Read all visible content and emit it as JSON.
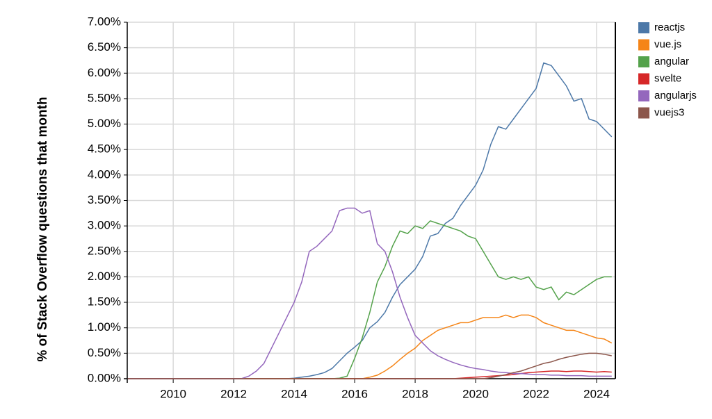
{
  "chart_data": {
    "type": "line",
    "ylabel": "% of Stack Overflow questions that month",
    "x": [
      2008.5,
      2008.75,
      2009,
      2009.25,
      2009.5,
      2009.75,
      2010,
      2010.25,
      2010.5,
      2010.75,
      2011,
      2011.25,
      2011.5,
      2011.75,
      2012,
      2012.25,
      2012.5,
      2012.75,
      2013,
      2013.25,
      2013.5,
      2013.75,
      2014,
      2014.25,
      2014.5,
      2014.75,
      2015,
      2015.25,
      2015.5,
      2015.75,
      2016,
      2016.25,
      2016.5,
      2016.75,
      2017,
      2017.25,
      2017.5,
      2017.75,
      2018,
      2018.25,
      2018.5,
      2018.75,
      2019,
      2019.25,
      2019.5,
      2019.75,
      2020,
      2020.25,
      2020.5,
      2020.75,
      2021,
      2021.25,
      2021.5,
      2021.75,
      2022,
      2022.25,
      2022.5,
      2022.75,
      2023,
      2023.25,
      2023.5,
      2023.75,
      2024,
      2024.25,
      2024.5
    ],
    "series": [
      {
        "name": "reactjs",
        "color": "#4c78a8",
        "values": [
          0,
          0,
          0,
          0,
          0,
          0,
          0,
          0,
          0,
          0,
          0,
          0,
          0,
          0,
          0,
          0,
          0,
          0,
          0,
          0,
          0,
          0,
          0.01,
          0.03,
          0.05,
          0.08,
          0.12,
          0.2,
          0.35,
          0.5,
          0.62,
          0.75,
          1.0,
          1.12,
          1.3,
          1.6,
          1.85,
          2.0,
          2.15,
          2.4,
          2.8,
          2.85,
          3.05,
          3.15,
          3.4,
          3.6,
          3.8,
          4.1,
          4.6,
          4.95,
          4.9,
          5.1,
          5.3,
          5.5,
          5.7,
          6.2,
          6.15,
          5.95,
          5.75,
          5.45,
          5.5,
          5.1,
          5.05,
          4.9,
          4.75
        ]
      },
      {
        "name": "vue.js",
        "color": "#f58518",
        "values": [
          0,
          0,
          0,
          0,
          0,
          0,
          0,
          0,
          0,
          0,
          0,
          0,
          0,
          0,
          0,
          0,
          0,
          0,
          0,
          0,
          0,
          0,
          0,
          0,
          0,
          0,
          0,
          0,
          0,
          0,
          0,
          0,
          0.03,
          0.07,
          0.15,
          0.25,
          0.38,
          0.5,
          0.6,
          0.75,
          0.85,
          0.95,
          1.0,
          1.05,
          1.1,
          1.1,
          1.15,
          1.2,
          1.2,
          1.2,
          1.25,
          1.2,
          1.25,
          1.25,
          1.2,
          1.1,
          1.05,
          1.0,
          0.95,
          0.95,
          0.9,
          0.85,
          0.8,
          0.78,
          0.7
        ]
      },
      {
        "name": "angular",
        "color": "#54a24b",
        "values": [
          0,
          0,
          0,
          0,
          0,
          0,
          0,
          0,
          0,
          0,
          0,
          0,
          0,
          0,
          0,
          0,
          0,
          0,
          0,
          0,
          0,
          0,
          0,
          0,
          0,
          0,
          0,
          0,
          0.01,
          0.05,
          0.4,
          0.8,
          1.3,
          1.9,
          2.2,
          2.6,
          2.9,
          2.85,
          3.0,
          2.95,
          3.1,
          3.05,
          3.0,
          2.95,
          2.9,
          2.8,
          2.75,
          2.5,
          2.25,
          2.0,
          1.95,
          2.0,
          1.95,
          2.0,
          1.8,
          1.75,
          1.8,
          1.55,
          1.7,
          1.65,
          1.75,
          1.85,
          1.95,
          2.0,
          2.0
        ]
      },
      {
        "name": "svelte",
        "color": "#d62728",
        "values": [
          0,
          0,
          0,
          0,
          0,
          0,
          0,
          0,
          0,
          0,
          0,
          0,
          0,
          0,
          0,
          0,
          0,
          0,
          0,
          0,
          0,
          0,
          0,
          0,
          0,
          0,
          0,
          0,
          0,
          0,
          0,
          0,
          0,
          0,
          0,
          0,
          0,
          0,
          0,
          0,
          0,
          0,
          0,
          0,
          0.01,
          0.02,
          0.03,
          0.04,
          0.05,
          0.06,
          0.07,
          0.08,
          0.1,
          0.12,
          0.13,
          0.14,
          0.15,
          0.15,
          0.14,
          0.15,
          0.15,
          0.14,
          0.13,
          0.14,
          0.13
        ]
      },
      {
        "name": "angularjs",
        "color": "#9467bd",
        "values": [
          0,
          0,
          0,
          0,
          0,
          0,
          0,
          0,
          0,
          0,
          0,
          0,
          0,
          0,
          0,
          0,
          0.05,
          0.15,
          0.3,
          0.6,
          0.9,
          1.2,
          1.5,
          1.9,
          2.5,
          2.6,
          2.75,
          2.9,
          3.3,
          3.35,
          3.35,
          3.25,
          3.3,
          2.65,
          2.5,
          2.1,
          1.6,
          1.2,
          0.85,
          0.7,
          0.55,
          0.45,
          0.38,
          0.32,
          0.27,
          0.23,
          0.2,
          0.18,
          0.15,
          0.13,
          0.12,
          0.1,
          0.1,
          0.09,
          0.08,
          0.08,
          0.07,
          0.07,
          0.06,
          0.06,
          0.06,
          0.05,
          0.05,
          0.05,
          0.05
        ]
      },
      {
        "name": "vuejs3",
        "color": "#8c564b",
        "values": [
          0,
          0,
          0,
          0,
          0,
          0,
          0,
          0,
          0,
          0,
          0,
          0,
          0,
          0,
          0,
          0,
          0,
          0,
          0,
          0,
          0,
          0,
          0,
          0,
          0,
          0,
          0,
          0,
          0,
          0,
          0,
          0,
          0,
          0,
          0,
          0,
          0,
          0,
          0,
          0,
          0,
          0,
          0,
          0,
          0,
          0,
          0,
          0,
          0.02,
          0.05,
          0.08,
          0.12,
          0.15,
          0.2,
          0.25,
          0.3,
          0.33,
          0.38,
          0.42,
          0.45,
          0.48,
          0.5,
          0.5,
          0.48,
          0.45
        ]
      }
    ],
    "xlim": [
      2008.48,
      2024.62
    ],
    "xticks": [
      2010,
      2012,
      2014,
      2016,
      2018,
      2020,
      2022,
      2024
    ],
    "ylim": [
      0,
      7
    ],
    "yticks": [
      {
        "value": 0,
        "label": "0.00%"
      },
      {
        "value": 0.5,
        "label": "0.50%"
      },
      {
        "value": 1,
        "label": "1.00%"
      },
      {
        "value": 1.5,
        "label": "1.50%"
      },
      {
        "value": 2,
        "label": "2.00%"
      },
      {
        "value": 2.5,
        "label": "2.50%"
      },
      {
        "value": 3,
        "label": "3.00%"
      },
      {
        "value": 3.5,
        "label": "3.50%"
      },
      {
        "value": 4,
        "label": "4.00%"
      },
      {
        "value": 4.5,
        "label": "4.50%"
      },
      {
        "value": 5,
        "label": "5.00%"
      },
      {
        "value": 5.5,
        "label": "5.50%"
      },
      {
        "value": 6,
        "label": "6.00%"
      },
      {
        "value": 6.5,
        "label": "6.50%"
      },
      {
        "value": 7,
        "label": "7.00%"
      }
    ],
    "grid": true,
    "legend": "top-right"
  }
}
